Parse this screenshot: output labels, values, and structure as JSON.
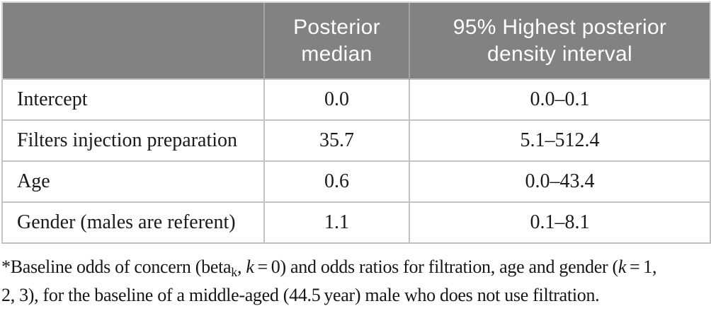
{
  "table": {
    "header": {
      "row_label_column": "",
      "posterior_median": "Posterior median",
      "hpdi": "95% Highest posterior density interval"
    },
    "rows": [
      {
        "label": "Intercept",
        "median": "0.0",
        "interval": "0.0–0.1"
      },
      {
        "label": "Filters injection preparation",
        "median": "35.7",
        "interval": "5.1–512.4"
      },
      {
        "label": "Age",
        "median": "0.6",
        "interval": "0.0–43.4"
      },
      {
        "label": "Gender (males are referent)",
        "median": "1.1",
        "interval": "0.1–8.1"
      }
    ]
  },
  "footnote": {
    "start": "*Baseline odds of concern (beta",
    "sub_k": "k",
    "comma": ", ",
    "italic_k1": "k",
    "mid": " = 0) and odds ratios for filtration, age and gender (",
    "italic_k2": "k",
    "line1_end": " = 1,",
    "line2": "2, 3), for the baseline of a middle-aged (44.5 year) male who does not use filtration."
  },
  "colors": {
    "header_bg": "#828282",
    "header_text": "#ffffff",
    "header_divider": "#a4a4a4",
    "body_border": "#c2c2c2",
    "body_text": "#1a1a1a"
  }
}
